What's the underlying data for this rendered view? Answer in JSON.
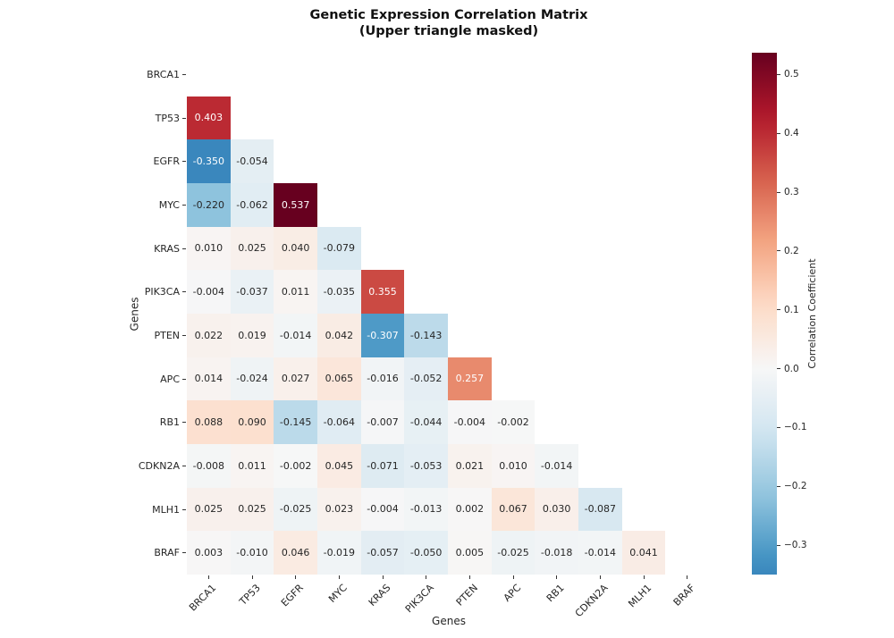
{
  "figure": {
    "title_line1": "Genetic Expression Correlation Matrix",
    "title_line2": "(Upper triangle masked)",
    "background": "#ffffff"
  },
  "chart_data": {
    "type": "heatmap",
    "title": "Genetic Expression Correlation Matrix (Upper triangle masked)",
    "xlabel": "Genes",
    "ylabel": "Genes",
    "mask": "upper triangle including diagonal",
    "annotation_decimals": 3,
    "categories": [
      "BRCA1",
      "TP53",
      "EGFR",
      "MYC",
      "KRAS",
      "PIK3CA",
      "PTEN",
      "APC",
      "RB1",
      "CDKN2A",
      "MLH1",
      "BRAF"
    ],
    "rows": [
      {
        "gene": "BRCA1",
        "values": []
      },
      {
        "gene": "TP53",
        "values": [
          0.403
        ]
      },
      {
        "gene": "EGFR",
        "values": [
          -0.35,
          -0.054
        ]
      },
      {
        "gene": "MYC",
        "values": [
          -0.22,
          -0.062,
          0.537
        ]
      },
      {
        "gene": "KRAS",
        "values": [
          0.01,
          0.025,
          0.04,
          -0.079
        ]
      },
      {
        "gene": "PIK3CA",
        "values": [
          -0.004,
          -0.037,
          0.011,
          -0.035,
          0.355
        ]
      },
      {
        "gene": "PTEN",
        "values": [
          0.022,
          0.019,
          -0.014,
          0.042,
          -0.307,
          -0.143
        ]
      },
      {
        "gene": "APC",
        "values": [
          0.014,
          -0.024,
          0.027,
          0.065,
          -0.016,
          -0.052,
          0.257
        ]
      },
      {
        "gene": "RB1",
        "values": [
          0.088,
          0.09,
          -0.145,
          -0.064,
          -0.007,
          -0.044,
          -0.004,
          -0.002
        ]
      },
      {
        "gene": "CDKN2A",
        "values": [
          -0.008,
          0.011,
          -0.002,
          0.045,
          -0.071,
          -0.053,
          0.021,
          0.01,
          -0.014
        ]
      },
      {
        "gene": "MLH1",
        "values": [
          0.025,
          0.025,
          -0.025,
          0.023,
          -0.004,
          -0.013,
          0.002,
          0.067,
          0.03,
          -0.087
        ]
      },
      {
        "gene": "BRAF",
        "values": [
          0.003,
          -0.01,
          0.046,
          -0.019,
          -0.057,
          -0.05,
          0.005,
          -0.025,
          -0.018,
          -0.014,
          0.041
        ]
      }
    ],
    "colormap": {
      "name": "RdBu_r",
      "center": 0,
      "vmin": -0.35,
      "vmax": 0.537,
      "anchors_low_to_high": [
        "#053061",
        "#2166ac",
        "#4393c3",
        "#92c5de",
        "#d1e5f0",
        "#f7f7f7",
        "#fddbc7",
        "#f4a582",
        "#d6604d",
        "#b2182b",
        "#67001f"
      ]
    },
    "colorbar": {
      "label": "Correlation Coefficient",
      "ticks": [
        {
          "value": 0.5,
          "label": "0.5"
        },
        {
          "value": 0.4,
          "label": "0.4"
        },
        {
          "value": 0.3,
          "label": "0.3"
        },
        {
          "value": 0.2,
          "label": "0.2"
        },
        {
          "value": 0.1,
          "label": "0.1"
        },
        {
          "value": 0.0,
          "label": "0.0"
        },
        {
          "value": -0.1,
          "label": "−0.1"
        },
        {
          "value": -0.2,
          "label": "−0.2"
        },
        {
          "value": -0.3,
          "label": "−0.3"
        }
      ]
    },
    "text_colors": {
      "annotation_dark": "#262626",
      "annotation_light": "#ffffff",
      "tick": "#262626"
    }
  }
}
